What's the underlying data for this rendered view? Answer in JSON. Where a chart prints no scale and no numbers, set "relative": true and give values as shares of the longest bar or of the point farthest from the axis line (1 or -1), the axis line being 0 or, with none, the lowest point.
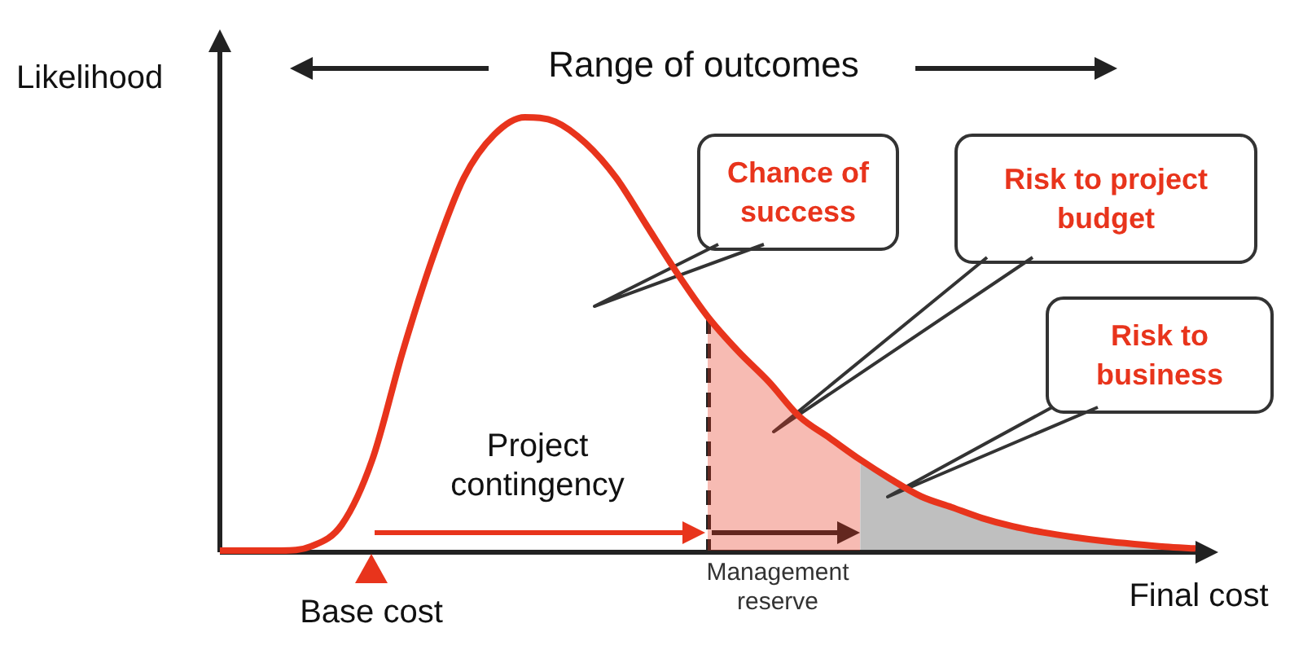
{
  "chart_data": {
    "type": "line",
    "relative": true,
    "ylabel": "Likelihood",
    "xlabel": "Final cost",
    "categories": [
      null,
      null,
      null,
      null,
      null,
      null,
      null,
      null,
      null,
      null,
      null,
      null,
      null,
      null,
      null,
      null,
      null,
      null,
      null,
      null,
      null,
      null,
      null,
      null,
      null,
      null,
      null,
      null,
      null,
      null,
      null,
      null,
      null
    ],
    "series": [
      {
        "type": "line",
        "color": "#e8341c",
        "values": [
          0,
          0,
          0,
          0.01,
          0.06,
          0.21,
          0.46,
          0.68,
          0.86,
          0.96,
          1,
          0.99,
          0.94,
          0.86,
          0.75,
          0.64,
          0.54,
          0.46,
          0.39,
          0.31,
          0.26,
          0.21,
          0.165,
          0.125,
          0.1,
          0.075,
          0.056,
          0.042,
          0.031,
          0.022,
          0.015,
          0.009,
          0.005
        ]
      },
      {
        "type": "area",
        "color": "#e8341c",
        "values": [
          null,
          null,
          null,
          null,
          null,
          null,
          null,
          null,
          null,
          null,
          null,
          null,
          null,
          null,
          null,
          null,
          0.54,
          0.46,
          0.39,
          0.31,
          0.26,
          0.21,
          null,
          null,
          null,
          null,
          null,
          null,
          null,
          null,
          null,
          null,
          null
        ]
      },
      {
        "type": "area",
        "color": "#404040",
        "values": [
          null,
          null,
          null,
          null,
          null,
          null,
          null,
          null,
          null,
          null,
          null,
          null,
          null,
          null,
          null,
          null,
          null,
          null,
          null,
          null,
          null,
          0.21,
          0.165,
          0.125,
          0.1,
          0.075,
          0.056,
          0.042,
          0.031,
          0.022,
          0.015,
          0.009,
          0.005
        ]
      }
    ],
    "annotations": [
      "Range of outcomes",
      "Chance of success",
      "Risk to project budget",
      "Risk to business",
      "Project contingency",
      "Management reserve",
      "Base cost"
    ]
  }
}
